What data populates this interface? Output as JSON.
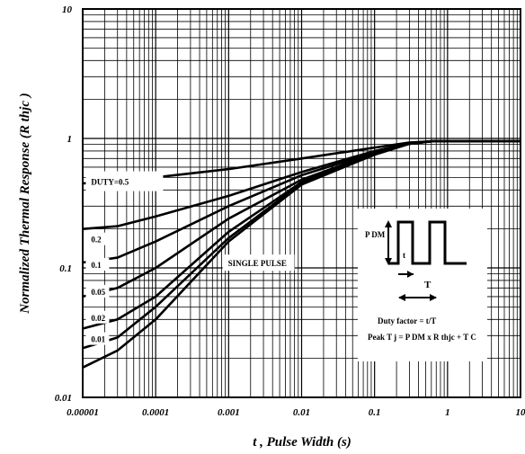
{
  "chart_data": {
    "type": "line",
    "xlabel": "t , Pulse Width (s)",
    "ylabel": "Normalized Thermal Response (R thjc )",
    "xscale": "log",
    "yscale": "log",
    "xlim": [
      1e-05,
      10
    ],
    "ylim": [
      0.01,
      10
    ],
    "grid": true,
    "x_ticks": [
      "0.00001",
      "0.0001",
      "0.001",
      "0.01",
      "0.1",
      "1",
      "10"
    ],
    "y_ticks": [
      "0.01",
      "0.1",
      "1",
      "10"
    ],
    "series": [
      {
        "name": "DUTY=0.5",
        "x": [
          1e-05,
          3e-05,
          0.0001,
          0.001,
          0.01,
          0.1,
          0.3,
          0.6,
          10
        ],
        "y": [
          0.45,
          0.46,
          0.5,
          0.58,
          0.7,
          0.85,
          0.93,
          0.95,
          0.95
        ]
      },
      {
        "name": "0.2",
        "x": [
          1e-05,
          3e-05,
          0.0001,
          0.001,
          0.01,
          0.1,
          0.3,
          0.6,
          10
        ],
        "y": [
          0.2,
          0.21,
          0.25,
          0.36,
          0.55,
          0.8,
          0.92,
          0.95,
          0.95
        ]
      },
      {
        "name": "0.1",
        "x": [
          1e-05,
          3e-05,
          0.0001,
          0.001,
          0.01,
          0.1,
          0.3,
          0.6,
          10
        ],
        "y": [
          0.11,
          0.12,
          0.16,
          0.3,
          0.52,
          0.78,
          0.92,
          0.95,
          0.95
        ]
      },
      {
        "name": "0.05",
        "x": [
          1e-05,
          3e-05,
          0.0001,
          0.001,
          0.01,
          0.1,
          0.3,
          0.6,
          10
        ],
        "y": [
          0.06,
          0.07,
          0.1,
          0.24,
          0.48,
          0.77,
          0.91,
          0.95,
          0.95
        ]
      },
      {
        "name": "0.02",
        "x": [
          1e-05,
          3e-05,
          0.0001,
          0.001,
          0.01,
          0.1,
          0.3,
          0.6,
          10
        ],
        "y": [
          0.034,
          0.04,
          0.06,
          0.19,
          0.46,
          0.76,
          0.91,
          0.95,
          0.95
        ]
      },
      {
        "name": "0.01",
        "x": [
          1e-05,
          3e-05,
          0.0001,
          0.001,
          0.01,
          0.1,
          0.3,
          0.6,
          10
        ],
        "y": [
          0.024,
          0.029,
          0.05,
          0.17,
          0.45,
          0.75,
          0.91,
          0.95,
          0.95
        ]
      },
      {
        "name": "SINGLE PULSE",
        "x": [
          1e-05,
          3e-05,
          0.0001,
          0.001,
          0.01,
          0.1,
          0.3,
          0.6,
          10
        ],
        "y": [
          0.017,
          0.023,
          0.04,
          0.16,
          0.44,
          0.75,
          0.91,
          0.95,
          0.95
        ]
      }
    ],
    "curve_labels": [
      "DUTY=0.5",
      "0.2",
      "0.1",
      "0.05",
      "0.02",
      "0.01",
      "SINGLE PULSE"
    ],
    "inset": {
      "pdm_label": "P DM",
      "t_label": "t",
      "T_label": "T",
      "duty_text": "Duty factor = t/T",
      "peak_text": "Peak  T j = P DM  x R thjc + T C"
    }
  }
}
